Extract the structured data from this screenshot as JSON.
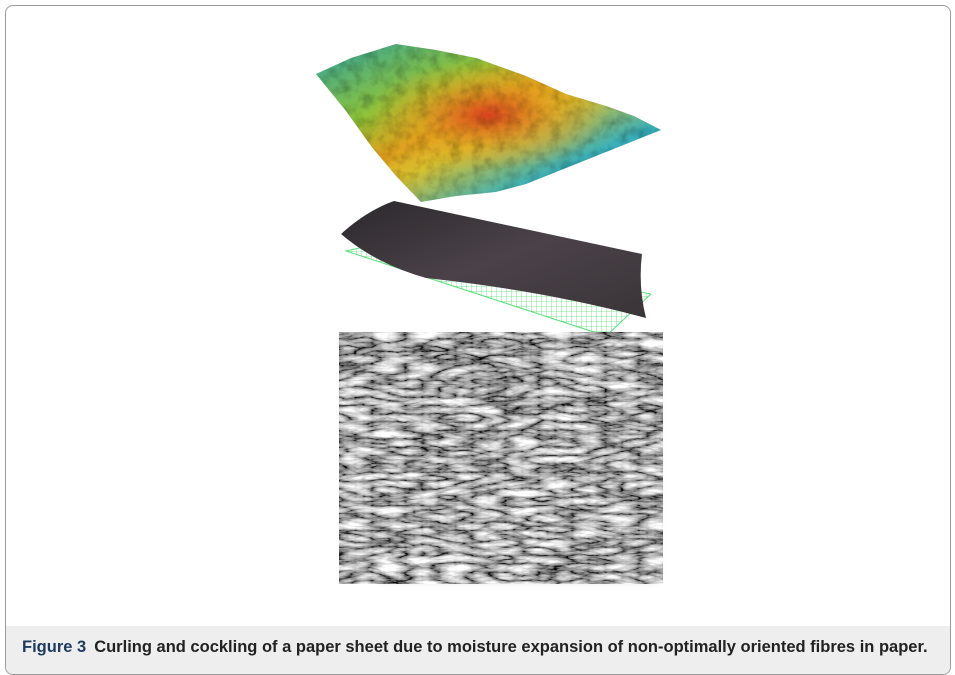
{
  "figure": {
    "label": "Figure 3",
    "caption": "Curling and cockling of a paper sheet due to moisture expansion of non-optimally oriented fibres in paper."
  }
}
